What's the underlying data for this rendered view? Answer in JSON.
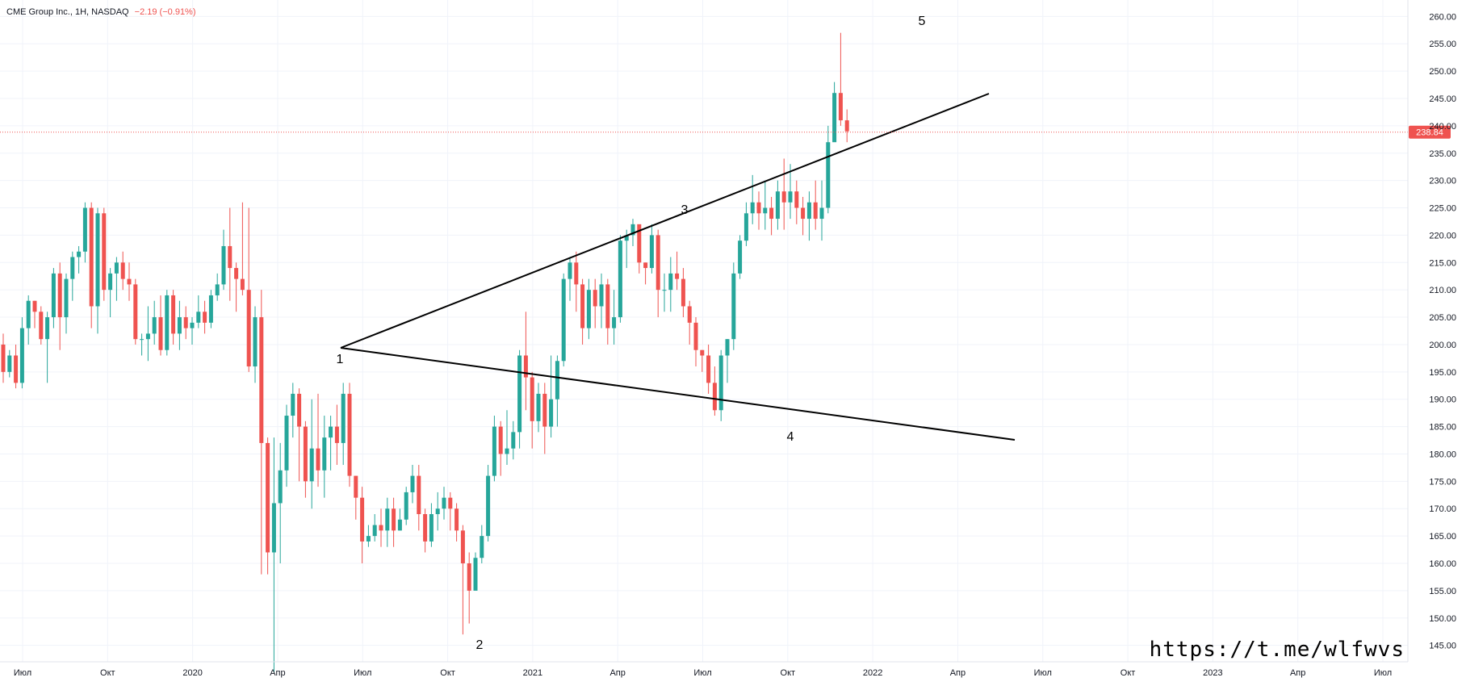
{
  "legend": {
    "symbol": "CME Group Inc., 1H, NASDAQ",
    "change": "−2.19 (−0.91%)"
  },
  "price_label": "238.84",
  "watermark": "https://t.me/wlfwvs",
  "colors": {
    "up": "#26a69a",
    "down": "#ef5350",
    "grid": "#f0f3fa",
    "axis_text": "#131722",
    "line": "#000000",
    "price_line": "#ef5350"
  },
  "chart_data": {
    "type": "candlestick",
    "y_ticks": [
      "145.00",
      "150.00",
      "155.00",
      "160.00",
      "165.00",
      "170.00",
      "175.00",
      "180.00",
      "185.00",
      "190.00",
      "195.00",
      "200.00",
      "205.00",
      "210.00",
      "215.00",
      "220.00",
      "225.00",
      "230.00",
      "235.00",
      "240.00",
      "245.00",
      "250.00",
      "255.00",
      "260.00"
    ],
    "x_ticks": [
      "Июл",
      "Окт",
      "2020",
      "Апр",
      "Июл",
      "Окт",
      "2021",
      "Апр",
      "Июл",
      "Окт",
      "2022",
      "Апр",
      "Июл",
      "Окт",
      "2023",
      "Апр",
      "Июл"
    ],
    "ylim": [
      142,
      263
    ],
    "current_price": 238.84,
    "candles": [
      [
        200,
        195,
        202,
        193
      ],
      [
        195,
        198,
        199,
        194
      ],
      [
        198,
        193,
        200,
        192
      ],
      [
        193,
        203,
        205,
        192
      ],
      [
        203,
        208,
        209,
        200
      ],
      [
        208,
        206,
        208,
        203
      ],
      [
        206,
        201,
        207,
        200
      ],
      [
        201,
        205,
        206,
        193
      ],
      [
        205,
        213,
        214,
        203
      ],
      [
        213,
        205,
        215,
        199
      ],
      [
        205,
        212,
        213,
        202
      ],
      [
        212,
        216,
        217,
        208
      ],
      [
        216,
        217,
        218,
        213
      ],
      [
        217,
        225,
        226,
        215
      ],
      [
        225,
        207,
        226,
        203
      ],
      [
        207,
        224,
        225,
        202
      ],
      [
        224,
        210,
        225,
        208
      ],
      [
        210,
        213,
        214,
        205
      ],
      [
        213,
        215,
        216,
        208
      ],
      [
        215,
        212,
        217,
        210
      ],
      [
        212,
        211,
        215,
        208
      ],
      [
        211,
        201,
        212,
        200
      ],
      [
        201,
        201,
        202,
        198
      ],
      [
        201,
        202,
        207,
        197
      ],
      [
        202,
        205,
        208,
        200
      ],
      [
        205,
        199,
        209,
        198
      ],
      [
        199,
        209,
        210,
        198
      ],
      [
        209,
        202,
        210,
        200
      ],
      [
        202,
        205,
        208,
        199
      ],
      [
        205,
        203,
        207,
        201
      ],
      [
        203,
        204,
        205,
        200
      ],
      [
        204,
        206,
        209,
        203
      ],
      [
        206,
        204,
        208,
        202
      ],
      [
        204,
        209,
        210,
        203
      ],
      [
        209,
        211,
        213,
        208
      ],
      [
        211,
        218,
        221,
        210
      ],
      [
        218,
        214,
        225,
        208
      ],
      [
        214,
        212,
        215,
        206
      ],
      [
        212,
        210,
        226,
        209
      ],
      [
        210,
        196,
        225,
        195
      ],
      [
        196,
        205,
        207,
        193
      ],
      [
        205,
        182,
        210,
        158
      ],
      [
        182,
        162,
        183,
        158
      ],
      [
        162,
        171,
        183,
        140
      ],
      [
        171,
        177,
        182,
        160
      ],
      [
        177,
        187,
        189,
        174
      ],
      [
        187,
        191,
        193,
        183
      ],
      [
        191,
        185,
        192,
        175
      ],
      [
        185,
        175,
        186,
        172
      ],
      [
        175,
        181,
        190,
        170
      ],
      [
        181,
        177,
        191,
        174
      ],
      [
        177,
        183,
        187,
        172
      ],
      [
        183,
        185,
        187,
        177
      ],
      [
        185,
        182,
        189,
        178
      ],
      [
        182,
        191,
        193,
        178
      ],
      [
        191,
        176,
        193,
        174
      ],
      [
        176,
        172,
        176,
        168
      ],
      [
        172,
        164,
        174,
        160
      ],
      [
        164,
        165,
        167,
        163
      ],
      [
        165,
        167,
        169,
        164
      ],
      [
        167,
        166,
        170,
        163
      ],
      [
        166,
        170,
        172,
        163
      ],
      [
        170,
        166,
        172,
        163
      ],
      [
        166,
        168,
        170,
        166
      ],
      [
        168,
        173,
        174,
        167
      ],
      [
        173,
        176,
        178,
        171
      ],
      [
        176,
        169,
        178,
        166
      ],
      [
        169,
        164,
        170,
        162
      ],
      [
        164,
        169,
        171,
        163
      ],
      [
        169,
        170,
        173,
        166
      ],
      [
        170,
        172,
        174,
        168
      ],
      [
        172,
        170,
        173,
        166
      ],
      [
        170,
        166,
        171,
        164
      ],
      [
        166,
        160,
        167,
        147
      ],
      [
        160,
        155,
        162,
        149
      ],
      [
        155,
        161,
        162,
        158
      ],
      [
        161,
        165,
        167,
        160
      ],
      [
        165,
        176,
        178,
        164
      ],
      [
        176,
        185,
        187,
        175
      ],
      [
        185,
        180,
        186,
        176
      ],
      [
        180,
        181,
        188,
        178
      ],
      [
        181,
        184,
        186,
        179
      ],
      [
        184,
        198,
        199,
        181
      ],
      [
        198,
        194,
        206,
        188
      ],
      [
        194,
        186,
        195,
        181
      ],
      [
        186,
        191,
        193,
        184
      ],
      [
        191,
        185,
        193,
        180
      ],
      [
        185,
        190,
        198,
        183
      ],
      [
        190,
        197,
        198,
        185
      ],
      [
        197,
        212,
        213,
        196
      ],
      [
        212,
        215,
        216,
        208
      ],
      [
        215,
        211,
        217,
        206
      ],
      [
        211,
        203,
        212,
        200
      ],
      [
        203,
        210,
        212,
        201
      ],
      [
        210,
        207,
        212,
        203
      ],
      [
        207,
        211,
        213,
        203
      ],
      [
        211,
        203,
        212,
        200
      ],
      [
        203,
        205,
        210,
        200
      ],
      [
        205,
        219,
        220,
        204
      ],
      [
        219,
        220,
        221,
        214
      ],
      [
        220,
        222,
        223,
        218
      ],
      [
        222,
        215,
        221,
        213
      ],
      [
        215,
        214,
        215,
        211
      ],
      [
        214,
        220,
        222,
        213
      ],
      [
        220,
        210,
        221,
        205
      ],
      [
        210,
        210,
        213,
        206
      ],
      [
        210,
        213,
        216,
        206
      ],
      [
        213,
        212,
        217,
        210
      ],
      [
        212,
        207,
        214,
        205
      ],
      [
        207,
        204,
        208,
        200
      ],
      [
        204,
        199,
        205,
        196
      ],
      [
        199,
        198,
        199,
        195
      ],
      [
        198,
        193,
        200,
        191
      ],
      [
        193,
        188,
        196,
        187
      ],
      [
        188,
        198,
        199,
        186
      ],
      [
        198,
        201,
        201,
        193
      ],
      [
        201,
        213,
        215,
        199
      ],
      [
        213,
        219,
        220,
        212
      ],
      [
        219,
        224,
        226,
        218
      ],
      [
        224,
        226,
        231,
        222
      ],
      [
        226,
        224,
        228,
        221
      ],
      [
        224,
        225,
        230,
        221
      ],
      [
        225,
        223,
        227,
        220
      ],
      [
        223,
        228,
        230,
        221
      ],
      [
        228,
        226,
        234,
        221
      ],
      [
        226,
        228,
        233,
        223
      ],
      [
        228,
        225,
        230,
        222
      ],
      [
        225,
        223,
        227,
        220
      ],
      [
        223,
        226,
        228,
        219
      ],
      [
        226,
        223,
        230,
        221
      ],
      [
        223,
        225,
        230,
        219
      ],
      [
        225,
        237,
        240,
        224
      ],
      [
        237,
        246,
        248,
        238
      ],
      [
        246,
        241,
        257,
        240
      ],
      [
        241,
        239,
        243,
        237
      ]
    ]
  }
}
